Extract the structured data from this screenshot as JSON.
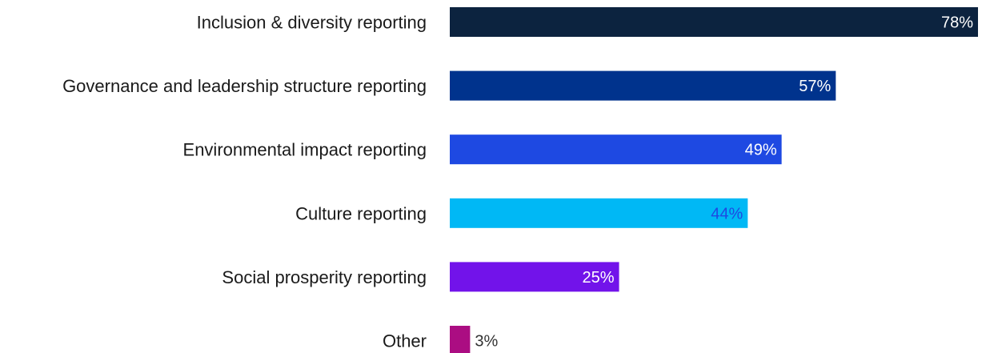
{
  "chart_data": {
    "type": "bar",
    "orientation": "horizontal",
    "categories": [
      "Inclusion & diversity reporting",
      "Governance and leadership structure reporting",
      "Environmental impact reporting",
      "Culture reporting",
      "Social prosperity reporting",
      "Other"
    ],
    "values": [
      78,
      57,
      49,
      44,
      25,
      3
    ],
    "value_labels": [
      "78%",
      "57%",
      "49%",
      "44%",
      "25%",
      "3%"
    ],
    "colors": [
      "#0c233f",
      "#00338d",
      "#1e49e2",
      "#00b8f5",
      "#7213ea",
      "#ab0d82"
    ],
    "value_label_colors": [
      "#ffffff",
      "#ffffff",
      "#ffffff",
      "#1e49e2",
      "#ffffff",
      "#333333"
    ],
    "xlim": [
      0,
      78
    ],
    "grid": false,
    "legend": "none"
  }
}
